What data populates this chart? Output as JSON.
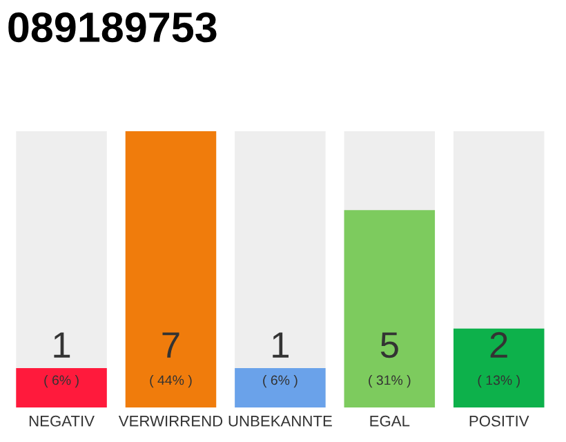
{
  "chart_data": {
    "type": "bar",
    "title": "089189753",
    "categories": [
      "NEGATIV",
      "VERWIRREND",
      "UNBEKANNTE",
      "EGAL",
      "POSITIV"
    ],
    "values": [
      1,
      7,
      1,
      5,
      2
    ],
    "colors": [
      "#ff1a3c",
      "#f07c0c",
      "#6aa2ea",
      "#7dcb5e",
      "#0db14b"
    ],
    "value_labels": [
      "1",
      "7",
      "1",
      "5",
      "2"
    ],
    "annotations": [
      "( 6% )",
      "( 44% )",
      "( 6% )",
      "( 31% )",
      "( 13% )"
    ],
    "tick_labels": "x",
    "grid": false
  }
}
